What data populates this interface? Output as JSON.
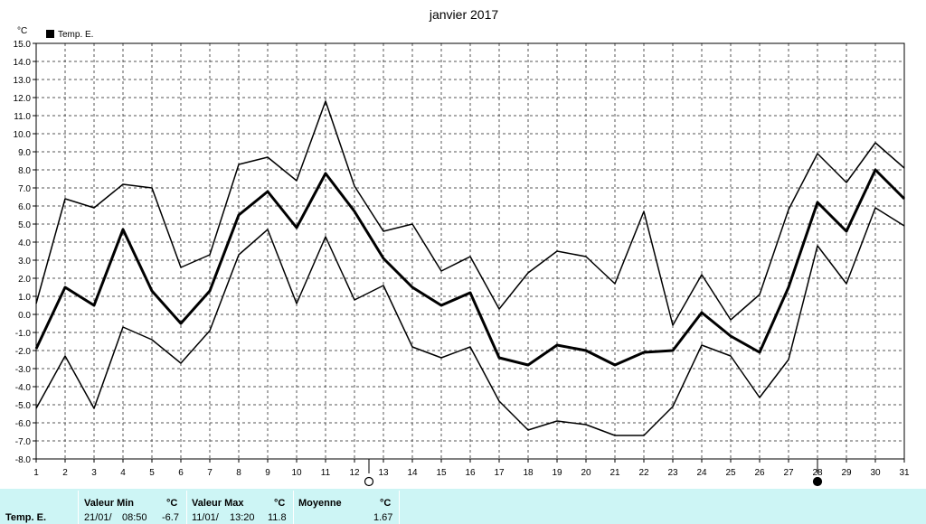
{
  "chart_data": {
    "type": "line",
    "title": "janvier 2017",
    "y_unit": "°C",
    "ylim": [
      -8.0,
      15.0
    ],
    "y_ticks": [
      "15.0",
      "14.0",
      "13.0",
      "12.0",
      "11.0",
      "10.0",
      "9.0",
      "8.0",
      "7.0",
      "6.0",
      "5.0",
      "4.0",
      "3.0",
      "2.0",
      "1.0",
      "0.0",
      "-1.0",
      "-2.0",
      "-3.0",
      "-4.0",
      "-5.0",
      "-6.0",
      "-7.0",
      "-8.0"
    ],
    "x": [
      1,
      2,
      3,
      4,
      5,
      6,
      7,
      8,
      9,
      10,
      11,
      12,
      13,
      14,
      15,
      16,
      17,
      18,
      19,
      20,
      21,
      22,
      23,
      24,
      25,
      26,
      27,
      28,
      29,
      30,
      31
    ],
    "x_labels": [
      "1",
      "2",
      "3",
      "4",
      "5",
      "6",
      "7",
      "8",
      "9",
      "10",
      "11",
      "12",
      "13",
      "14",
      "15",
      "16",
      "17",
      "18",
      "19",
      "20",
      "21",
      "22",
      "23",
      "24",
      "25",
      "26",
      "27",
      "28",
      "29",
      "30",
      "31"
    ],
    "legend": "Temp. E.",
    "grid": true,
    "series": [
      {
        "role": "max",
        "values": [
          0.6,
          6.4,
          5.9,
          7.2,
          7.0,
          2.6,
          3.3,
          8.3,
          8.7,
          7.4,
          11.8,
          7.1,
          4.6,
          5.0,
          2.4,
          3.2,
          0.3,
          2.3,
          3.5,
          3.2,
          1.7,
          5.7,
          -0.6,
          2.2,
          -0.3,
          1.1,
          5.8,
          8.9,
          7.3,
          9.5,
          8.1
        ]
      },
      {
        "role": "mean",
        "values": [
          -1.9,
          1.5,
          0.5,
          4.7,
          1.3,
          -0.5,
          1.3,
          5.5,
          6.8,
          4.8,
          7.8,
          5.7,
          3.1,
          1.5,
          0.5,
          1.2,
          -2.4,
          -2.8,
          -1.7,
          -2.0,
          -2.8,
          -2.1,
          -2.0,
          0.1,
          -1.2,
          -2.1,
          1.5,
          6.2,
          4.6,
          8.0,
          6.4
        ]
      },
      {
        "role": "min",
        "values": [
          -5.2,
          -2.3,
          -5.2,
          -0.7,
          -1.4,
          -2.7,
          -0.9,
          3.3,
          4.7,
          0.6,
          4.3,
          0.8,
          1.6,
          -1.8,
          -2.4,
          -1.8,
          -4.8,
          -6.4,
          -5.9,
          -6.1,
          -6.7,
          -6.7,
          -5.1,
          -1.7,
          -2.3,
          -4.6,
          -2.5,
          3.8,
          1.7,
          5.9,
          4.9
        ]
      }
    ],
    "moon_phases": [
      {
        "day": 12.5,
        "symbol": "full-moon"
      },
      {
        "day": 28,
        "symbol": "new-moon"
      }
    ]
  },
  "footer": {
    "row_label": "Temp. E.",
    "min_label": "Valeur Min",
    "min_unit": "°C",
    "min_date": "21/01/",
    "min_time": "08:50",
    "min_value": "-6.7",
    "max_label": "Valeur Max",
    "max_unit": "°C",
    "max_date": "11/01/",
    "max_time": "13:20",
    "max_value": "11.8",
    "avg_label": "Moyenne",
    "avg_unit": "°C",
    "avg_value": "1.67"
  }
}
